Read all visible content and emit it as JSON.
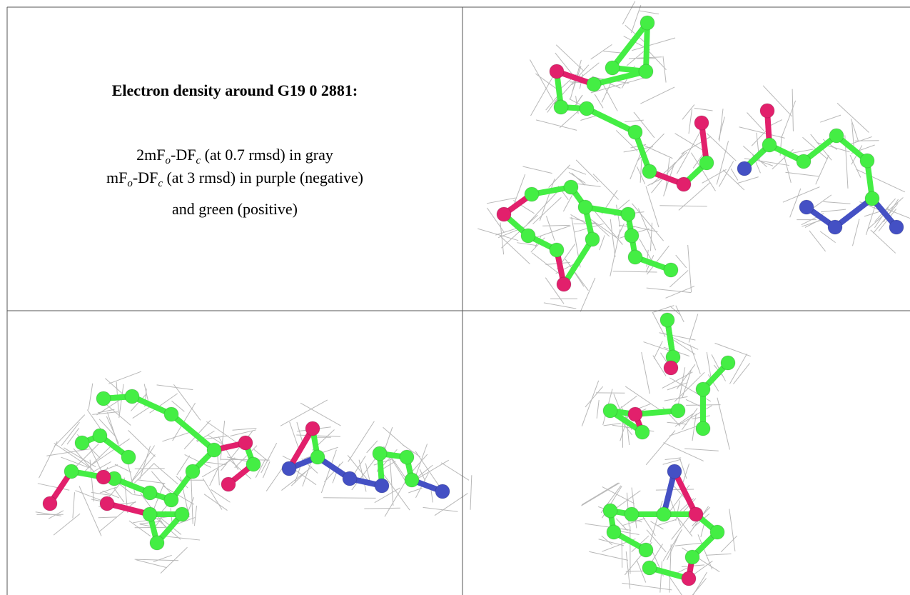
{
  "cell_text": {
    "title": "Electron density around G19 0 2881:",
    "lines": [
      [
        "2mF",
        "o",
        "-DF",
        "c",
        " (at 0.7 rmsd) in gray"
      ],
      [
        "mF",
        "o",
        "-DF",
        "c",
        " (at 3 rmsd) in purple (negative)"
      ],
      [
        "and green (positive)"
      ]
    ]
  }
}
